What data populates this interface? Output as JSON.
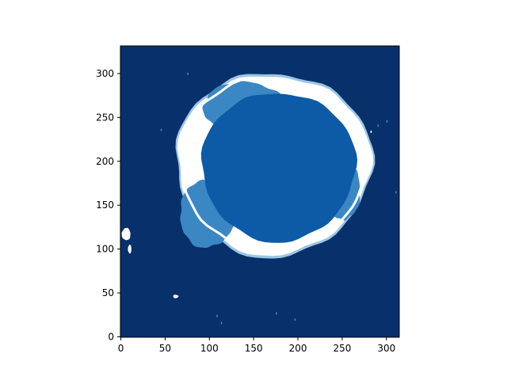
{
  "chart_data": {
    "type": "heatmap",
    "title": "",
    "xlabel": "",
    "ylabel": "",
    "image_size": {
      "cols": 315,
      "rows": 332
    },
    "xlim": [
      -0.5,
      314.5
    ],
    "ylim": [
      331.5,
      -0.5
    ],
    "x_ticks": [
      0,
      50,
      100,
      150,
      200,
      250,
      300
    ],
    "x_tick_labels": [
      "0",
      "50",
      "100",
      "150",
      "200",
      "250",
      "300"
    ],
    "y_ticks": [
      0,
      50,
      100,
      150,
      200,
      250,
      300
    ],
    "y_tick_labels": [
      "0",
      "50",
      "100",
      "150",
      "200",
      "250",
      "300"
    ],
    "grid": false,
    "legend": "none",
    "colormap": "Blues (reversed)",
    "colors": {
      "background": "#08306b",
      "interior": "#0d5ba6",
      "lobe": "#3b87c4",
      "rim": "#ffffff",
      "rim_halo": "#9cc6e3"
    },
    "regions": {
      "background_level": 0,
      "interior_level": 1,
      "lobe_level": 2,
      "rim_level": 3,
      "object_center": [
        172,
        199
      ],
      "interior_radii": [
        93,
        85
      ],
      "rim_radii": [
        109,
        102
      ]
    }
  }
}
